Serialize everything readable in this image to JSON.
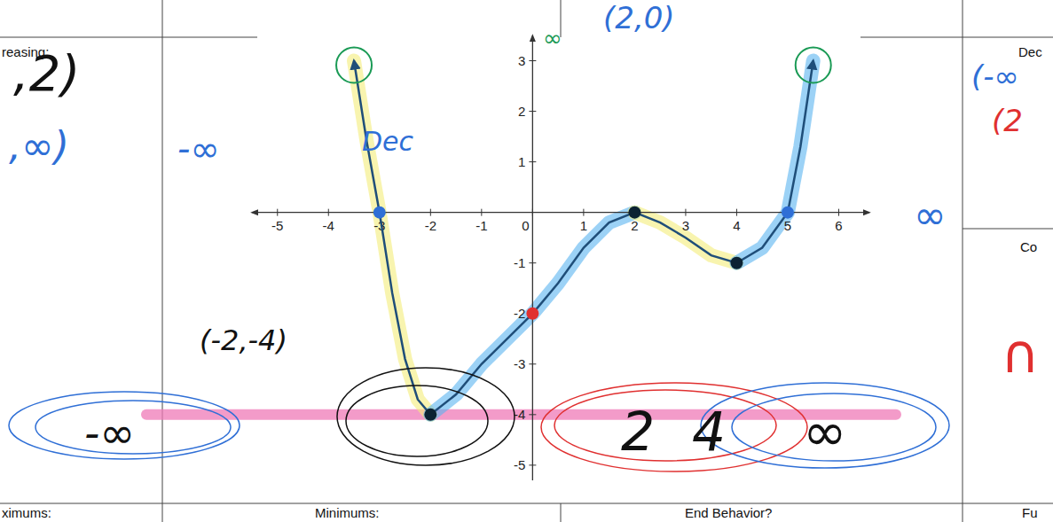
{
  "chart_data": {
    "type": "line",
    "xlim": [
      -5.5,
      6.6
    ],
    "ylim": [
      -5.3,
      3.5
    ],
    "xticks": [
      -5,
      -4,
      -3,
      -2,
      -1,
      0,
      1,
      2,
      3,
      4,
      5,
      6
    ],
    "yticks": [
      -5,
      -4,
      -3,
      -2,
      -1,
      1,
      2,
      3
    ],
    "grid": false,
    "series": [
      {
        "type": "line",
        "color": "#1f4e79",
        "line_style": "solid",
        "x": [
          -3.5,
          -3.25,
          -3,
          -2.75,
          -2.5,
          -2.25,
          -2,
          -1.5,
          -1,
          -0.5,
          0,
          0.5,
          1,
          1.5,
          2,
          2.5,
          3,
          3.5,
          4,
          4.5,
          5,
          5.25,
          5.5
        ],
        "values": [
          3,
          1.4,
          0,
          -1.6,
          -2.9,
          -3.7,
          -4,
          -3.6,
          -3,
          -2.5,
          -2,
          -1.4,
          -0.7,
          -0.2,
          0,
          -0.2,
          -0.5,
          -0.85,
          -1,
          -0.7,
          0,
          1.3,
          3
        ]
      },
      {
        "type": "scatter",
        "marker": "circle",
        "x": [
          -3,
          -2,
          0,
          2,
          4,
          5
        ],
        "values": [
          0,
          -4,
          -2,
          0,
          -1,
          0
        ],
        "colors": [
          "#2f6fd6",
          "#0b2233",
          "#e03030",
          "#0b2233",
          "#0b2233",
          "#2f6fd6"
        ]
      }
    ]
  },
  "worksheet": {
    "labels": [
      "reasing:",
      "Dec",
      "Co",
      "ximums:",
      "Minimums:",
      "End Behavior?",
      "Fu"
    ],
    "handwriting": [
      "(2,0)",
      ",2)",
      ",∞)",
      "-∞",
      "Dec",
      "∞",
      "(-∞",
      "(2",
      "∩",
      "-∞",
      "(-2,-4)",
      "2",
      "4",
      "∞",
      "∞"
    ]
  }
}
